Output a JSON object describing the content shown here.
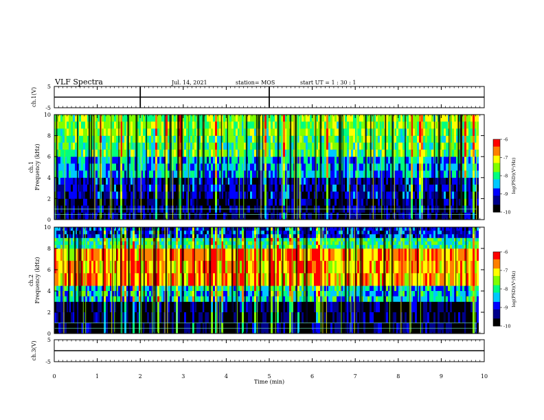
{
  "header": {
    "title": "VLF Spectra",
    "date": "Jul. 14, 2021",
    "station": "station= MOS",
    "start": "start UT = 1 : 30 : 1"
  },
  "colors": {
    "scale": [
      "#000000",
      "#00008b",
      "#0000ff",
      "#00c8ff",
      "#00ff7f",
      "#7fff00",
      "#ffff00",
      "#ff7f00",
      "#ff0000",
      "#ff6060",
      "#ffffff"
    ]
  },
  "chart_data": [
    {
      "type": "line",
      "ylabel": "ch.1(V)",
      "ylim": [
        -5,
        5
      ],
      "y_ticks": [
        "5",
        "-5"
      ],
      "x": [
        0,
        10
      ],
      "values": [
        0,
        0
      ]
    },
    {
      "type": "heatmap",
      "ylabel": "ch.1\nFrequency (kHz)",
      "ylim": [
        0,
        10
      ],
      "y_ticks": [
        "0",
        "2",
        "4",
        "6",
        "8",
        "10"
      ],
      "xlim": [
        0,
        9.83
      ],
      "colorbar": {
        "label": "log(PSD)(V²/Hz)",
        "range": [
          -10,
          -6
        ],
        "ticks": [
          "-6",
          "-7",
          "-8",
          "-9",
          "-10"
        ]
      },
      "bands": [
        {
          "f_min": 0,
          "f_max": 2,
          "log_psd": -9.5
        },
        {
          "f_min": 2,
          "f_max": 4,
          "log_psd": -9.2
        },
        {
          "f_min": 4,
          "f_max": 6,
          "log_psd": -8.5
        },
        {
          "f_min": 6,
          "f_max": 8,
          "log_psd": -7.8
        },
        {
          "f_min": 8,
          "f_max": 10,
          "log_psd": -7.6
        }
      ]
    },
    {
      "type": "heatmap",
      "ylabel": "ch.2\nFrequency (kHz)",
      "ylim": [
        0,
        10
      ],
      "y_ticks": [
        "0",
        "2",
        "4",
        "6",
        "8",
        "10"
      ],
      "xlim": [
        0,
        9.83
      ],
      "colorbar": {
        "label": "log(PSD)(V²/Hz)",
        "range": [
          -10,
          -6
        ],
        "ticks": [
          "-6",
          "-7",
          "-8",
          "-9",
          "-10"
        ]
      },
      "bands": [
        {
          "f_min": 0,
          "f_max": 3,
          "log_psd": -9.6
        },
        {
          "f_min": 3,
          "f_max": 4.5,
          "log_psd": -8.3
        },
        {
          "f_min": 4.5,
          "f_max": 8,
          "log_psd": -6.8
        },
        {
          "f_min": 8,
          "f_max": 9,
          "log_psd": -8.0
        },
        {
          "f_min": 9,
          "f_max": 10,
          "log_psd": -9.0
        }
      ]
    },
    {
      "type": "line",
      "ylabel": "ch.3(V)",
      "ylim": [
        -5,
        5
      ],
      "y_ticks": [
        "5",
        "-5"
      ],
      "x": [
        0,
        10
      ],
      "values": [
        0,
        0
      ]
    }
  ],
  "x_axis": {
    "label": "Time (min)",
    "range": [
      0,
      10
    ],
    "ticks": [
      "0",
      "1",
      "2",
      "3",
      "4",
      "5",
      "6",
      "7",
      "8",
      "9",
      "10"
    ]
  }
}
